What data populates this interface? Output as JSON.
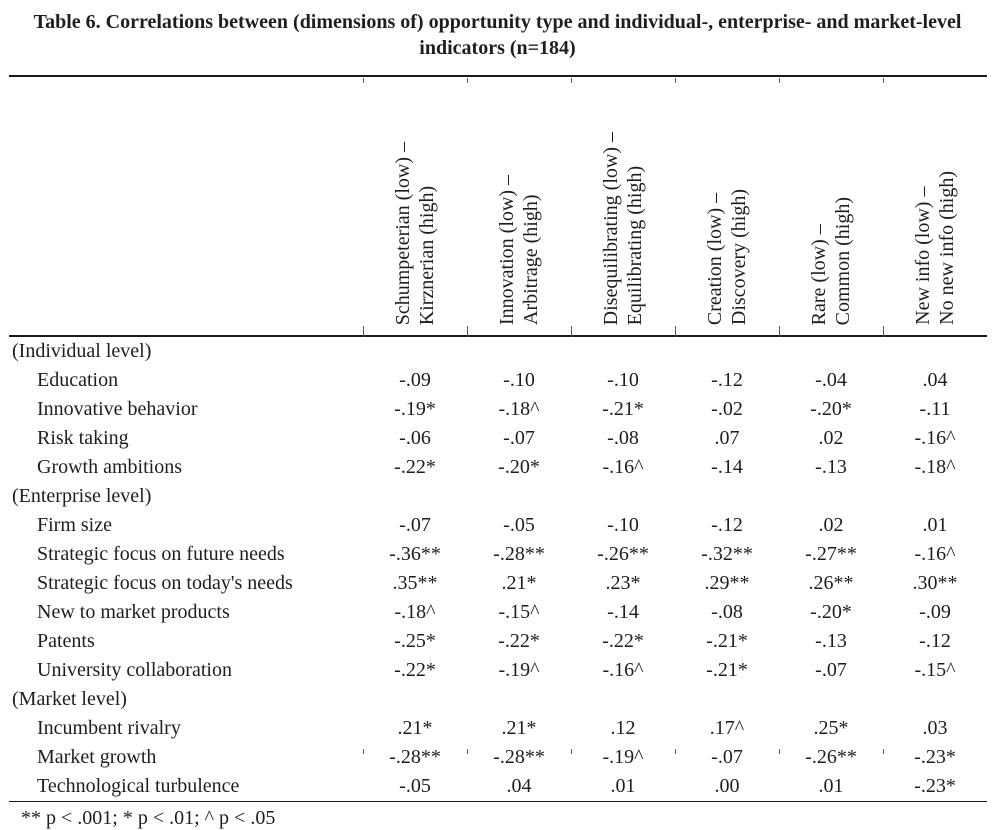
{
  "title": "Table 6. Correlations between (dimensions of) opportunity type and individual-, enterprise- and market-level indicators (n=184)",
  "columns": [
    {
      "label": "Schumpeterian (low) –\nKirznerian (high)"
    },
    {
      "label": "Innovation (low) –\nArbitrage (high)"
    },
    {
      "label": "Disequilibrating (low) –\nEquilibrating (high)"
    },
    {
      "label": "Creation (low) –\nDiscovery (high)"
    },
    {
      "label": "Rare (low) –\nCommon (high)"
    },
    {
      "label": "New info (low) –\nNo new info (high)"
    }
  ],
  "rows": [
    {
      "label": "(Individual level)",
      "section": true,
      "values": [
        "",
        "",
        "",
        "",
        "",
        ""
      ]
    },
    {
      "label": "Education",
      "section": false,
      "values": [
        "-.09",
        "-.10",
        "-.10",
        "-.12",
        "-.04",
        ".04"
      ]
    },
    {
      "label": "Innovative behavior",
      "section": false,
      "values": [
        "-.19*",
        "-.18^",
        "-.21*",
        "-.02",
        "-.20*",
        "-.11"
      ]
    },
    {
      "label": "Risk taking",
      "section": false,
      "values": [
        "-.06",
        "-.07",
        "-.08",
        ".07",
        ".02",
        "-.16^"
      ]
    },
    {
      "label": "Growth ambitions",
      "section": false,
      "values": [
        "-.22*",
        "-.20*",
        "-.16^",
        "-.14",
        "-.13",
        "-.18^"
      ]
    },
    {
      "label": "(Enterprise level)",
      "section": true,
      "values": [
        "",
        "",
        "",
        "",
        "",
        ""
      ]
    },
    {
      "label": "Firm size",
      "section": false,
      "values": [
        "-.07",
        "-.05",
        "-.10",
        "-.12",
        ".02",
        ".01"
      ]
    },
    {
      "label": "Strategic focus on future needs",
      "section": false,
      "values": [
        "-.36**",
        "-.28**",
        "-.26**",
        "-.32**",
        "-.27**",
        "-.16^"
      ]
    },
    {
      "label": "Strategic focus on today's needs",
      "section": false,
      "values": [
        ".35**",
        ".21*",
        ".23*",
        ".29**",
        ".26**",
        ".30**"
      ]
    },
    {
      "label": "New to market products",
      "section": false,
      "values": [
        "-.18^",
        "-.15^",
        "-.14",
        "-.08",
        "-.20*",
        "-.09"
      ]
    },
    {
      "label": "Patents",
      "section": false,
      "values": [
        "-.25*",
        "-.22*",
        "-.22*",
        "-.21*",
        "-.13",
        "-.12"
      ]
    },
    {
      "label": "University collaboration",
      "section": false,
      "values": [
        "-.22*",
        "-.19^",
        "-.16^",
        "-.21*",
        "-.07",
        "-.15^"
      ]
    },
    {
      "label": "(Market level)",
      "section": true,
      "values": [
        "",
        "",
        "",
        "",
        "",
        ""
      ]
    },
    {
      "label": "Incumbent rivalry",
      "section": false,
      "values": [
        ".21*",
        ".21*",
        ".12",
        ".17^",
        ".25*",
        ".03"
      ]
    },
    {
      "label": "Market growth",
      "section": false,
      "values": [
        "-.28**",
        "-.28**",
        "-.19^",
        "-.07",
        "-.26**",
        "-.23*"
      ]
    },
    {
      "label": "Technological turbulence",
      "section": false,
      "values": [
        "-.05",
        ".04",
        ".01",
        ".00",
        ".01",
        "-.23*"
      ]
    }
  ],
  "footnote": "** p < .001; * p < .01; ^ p < .05",
  "colors": {
    "text": "#1e1e1e",
    "rule": "#1a1a1a"
  }
}
